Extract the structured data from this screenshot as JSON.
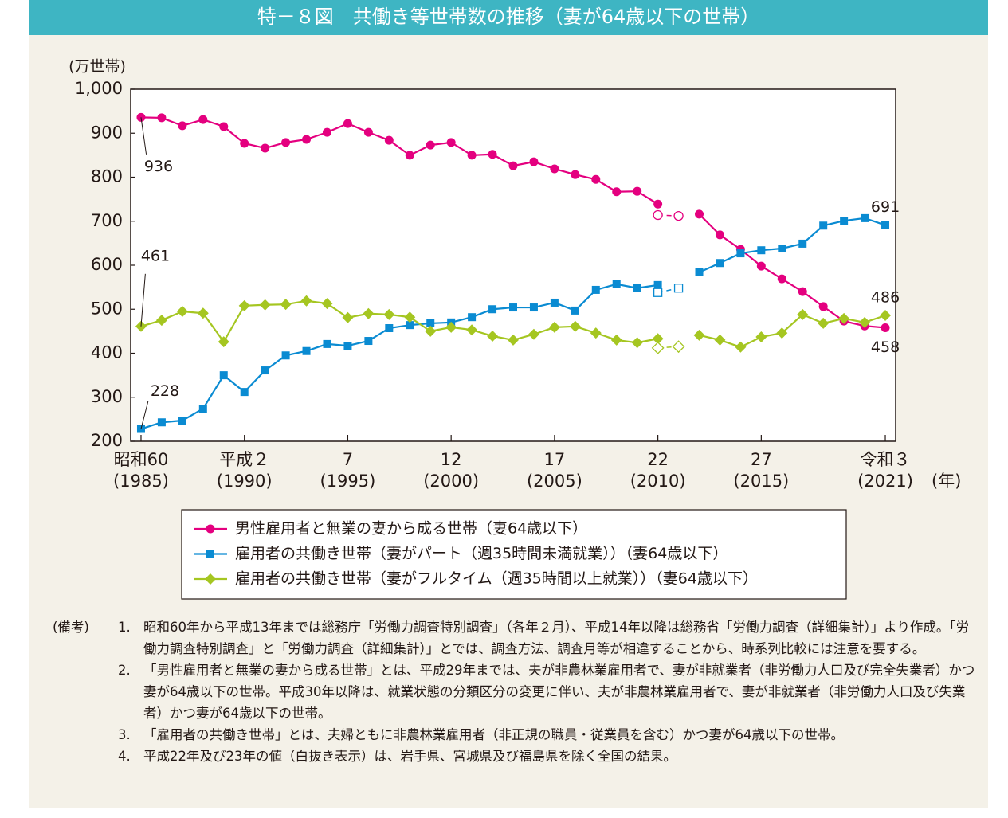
{
  "header": {
    "title": "特－８図　共働き等世帯数の推移（妻が64歳以下の世帯）"
  },
  "chart_data": {
    "type": "line",
    "y_unit": "(万世帯)",
    "x_unit": "(年)",
    "x": [
      1985,
      1986,
      1987,
      1988,
      1989,
      1990,
      1991,
      1992,
      1993,
      1994,
      1995,
      1996,
      1997,
      1998,
      1999,
      2000,
      2001,
      2002,
      2003,
      2004,
      2005,
      2006,
      2007,
      2008,
      2009,
      2010,
      2011,
      2012,
      2013,
      2014,
      2015,
      2016,
      2017,
      2018,
      2019,
      2020,
      2021
    ],
    "xlim": [
      1984.5,
      2021.5
    ],
    "xticks": [
      {
        "value": 1985,
        "label": [
          "昭和60",
          "(1985)"
        ]
      },
      {
        "value": 1990,
        "label": [
          "平成２",
          "(1990)"
        ]
      },
      {
        "value": 1995,
        "label": [
          "7",
          "(1995)"
        ]
      },
      {
        "value": 2000,
        "label": [
          "12",
          "(2000)"
        ]
      },
      {
        "value": 2005,
        "label": [
          "17",
          "(2005)"
        ]
      },
      {
        "value": 2010,
        "label": [
          "22",
          "(2010)"
        ]
      },
      {
        "value": 2015,
        "label": [
          "27",
          "(2015)"
        ]
      },
      {
        "value": 2021,
        "label": [
          "令和３",
          "(2021)"
        ]
      }
    ],
    "ylim": [
      200,
      1000
    ],
    "yticks": [
      200,
      300,
      400,
      500,
      600,
      700,
      800,
      900,
      {
        "value": 1000,
        "label": "1,000"
      }
    ],
    "series": [
      {
        "name": "男性雇用者と無業の妻から成る世帯（妻64歳以下）",
        "color": "#e4007f",
        "marker": "circle",
        "values": [
          936,
          935,
          917,
          931,
          915,
          877,
          866,
          879,
          886,
          902,
          922,
          902,
          884,
          850,
          873,
          879,
          850,
          852,
          826,
          835,
          819,
          806,
          795,
          767,
          768,
          739,
          null,
          716,
          669,
          636,
          598,
          569,
          540,
          506,
          473,
          462,
          458
        ],
        "excluded_values": [
          null,
          null,
          null,
          null,
          null,
          null,
          null,
          null,
          null,
          null,
          null,
          null,
          null,
          null,
          null,
          null,
          null,
          null,
          null,
          null,
          null,
          null,
          null,
          null,
          null,
          714,
          712,
          null,
          null,
          null,
          null,
          null,
          null,
          null,
          null,
          null,
          null
        ]
      },
      {
        "name": "雇用者の共働き世帯（妻がパート（週35時間未満就業））（妻64歳以下）",
        "color": "#0a8bd2",
        "marker": "square",
        "values": [
          228,
          243,
          247,
          274,
          350,
          312,
          361,
          395,
          405,
          421,
          417,
          428,
          457,
          464,
          468,
          470,
          482,
          500,
          504,
          504,
          515,
          497,
          544,
          557,
          548,
          555,
          null,
          584,
          605,
          627,
          634,
          638,
          649,
          690,
          701,
          707,
          691
        ],
        "excluded_values": [
          null,
          null,
          null,
          null,
          null,
          null,
          null,
          null,
          null,
          null,
          null,
          null,
          null,
          null,
          null,
          null,
          null,
          null,
          null,
          null,
          null,
          null,
          null,
          null,
          null,
          538,
          548,
          null,
          null,
          null,
          null,
          null,
          null,
          null,
          null,
          null,
          null
        ]
      },
      {
        "name": "雇用者の共働き世帯（妻がフルタイム（週35時間以上就業））（妻64歳以下）",
        "color": "#a5c621",
        "marker": "diamond",
        "values": [
          461,
          475,
          495,
          491,
          426,
          508,
          510,
          511,
          519,
          513,
          481,
          490,
          488,
          482,
          450,
          459,
          453,
          439,
          430,
          443,
          459,
          461,
          446,
          430,
          424,
          433,
          null,
          441,
          430,
          414,
          437,
          446,
          488,
          468,
          479,
          470,
          486
        ],
        "excluded_values": [
          null,
          null,
          null,
          null,
          null,
          null,
          null,
          null,
          null,
          null,
          null,
          null,
          null,
          null,
          null,
          null,
          null,
          null,
          null,
          null,
          null,
          null,
          null,
          null,
          null,
          412,
          415,
          null,
          null,
          null,
          null,
          null,
          null,
          null,
          null,
          null,
          null
        ]
      }
    ]
  },
  "notes": {
    "prefix": "(備考)",
    "items": [
      {
        "number": "1.",
        "text": "昭和60年から平成13年までは総務庁「労働力調査特別調査」（各年２月）、平成14年以降は総務省「労働力調査（詳細集計）」より作成。「労働力調査特別調査」と「労働力調査（詳細集計）」とでは、調査方法、調査月等が相違することから、時系列比較には注意を要する。"
      },
      {
        "number": "2.",
        "text": "「男性雇用者と無業の妻から成る世帯」とは、平成29年までは、夫が非農林業雇用者で、妻が非就業者（非労働力人口及び完全失業者）かつ妻が64歳以下の世帯。平成30年以降は、就業状態の分類区分の変更に伴い、夫が非農林業雇用者で、妻が非就業者（非労働力人口及び失業者）かつ妻が64歳以下の世帯。"
      },
      {
        "number": "3.",
        "text": "「雇用者の共働き世帯」とは、夫婦ともに非農林業雇用者（非正規の職員・従業員を含む）かつ妻が64歳以下の世帯。"
      },
      {
        "number": "4.",
        "text": "平成22年及び23年の値（白抜き表示）は、岩手県、宮城県及び福島県を除く全国の結果。"
      }
    ]
  }
}
